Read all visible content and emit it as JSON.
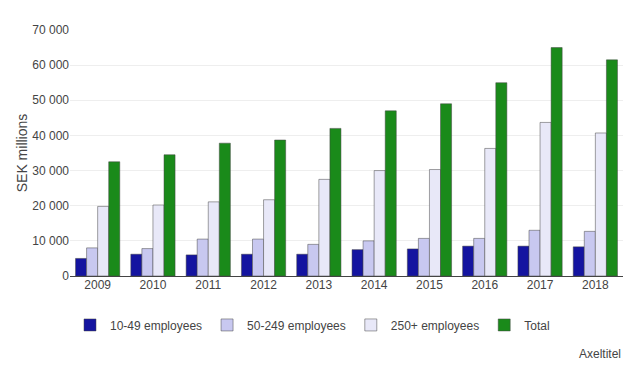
{
  "chart_data": {
    "type": "bar",
    "ylabel": "SEK millions",
    "categories": [
      "2009",
      "2010",
      "2011",
      "2012",
      "2013",
      "2014",
      "2015",
      "2016",
      "2017",
      "2018"
    ],
    "series": [
      {
        "name": "10-49 employees",
        "color": "#1414a0",
        "values": [
          5000,
          6200,
          6000,
          6200,
          6200,
          7500,
          7700,
          8500,
          8500,
          8300
        ]
      },
      {
        "name": "50-249 employees",
        "color": "#c8c8f0",
        "values": [
          8000,
          7800,
          10500,
          10500,
          9000,
          10000,
          10700,
          10700,
          13000,
          12700
        ]
      },
      {
        "name": "250+ employees",
        "color": "#e8e8f8",
        "values": [
          19800,
          20200,
          21100,
          21700,
          27500,
          30000,
          30300,
          36300,
          43700,
          40700
        ]
      },
      {
        "name": "Total",
        "color": "#1a8a1a",
        "values": [
          32500,
          34500,
          37800,
          38700,
          42000,
          47000,
          49000,
          55000,
          65000,
          61500
        ]
      }
    ],
    "ylim": [
      0,
      70000
    ],
    "yticks": [
      0,
      {
        "value": 10000,
        "label": "10 000"
      },
      {
        "value": 20000,
        "label": "20 000"
      },
      {
        "value": 30000,
        "label": "30 000"
      },
      {
        "value": 40000,
        "label": "40 000"
      },
      {
        "value": 50000,
        "label": "50 000"
      },
      {
        "value": 60000,
        "label": "60 000"
      },
      {
        "value": 70000,
        "label": "70 000"
      }
    ],
    "grid": true,
    "legend": "bottom",
    "annotations": [
      "Axeltitel"
    ]
  }
}
